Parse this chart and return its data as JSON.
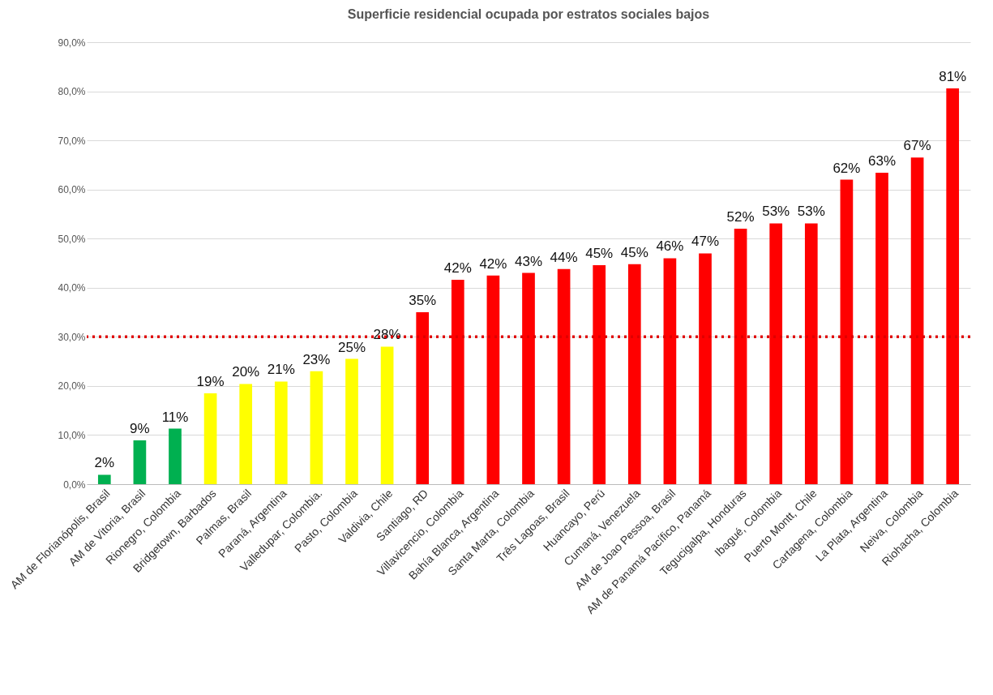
{
  "chart_data": {
    "type": "bar",
    "title": "Superficie residencial ocupada por estratos sociales bajos",
    "categories": [
      "AM de Florianópolis, Brasil",
      "AM de Vitoria, Brasil",
      "Rionegro, Colombia",
      "Bridgetown, Barbados",
      "Palmas, Brasil",
      "Paraná, Argentina",
      "Valledupar, Colombia.",
      "Pasto, Colombia",
      "Valdivia, Chile",
      "Santiago, RD",
      "Villavicencio, Colombia",
      "Bahía Blanca, Argentina",
      "Santa Marta, Colombia",
      "Três Lagoas, Brasil",
      "Huancayo, Perú",
      "Cumaná, Venezuela",
      "AM de Joao Pessoa, Brasil",
      "AM de Panamá Pacífico, Panamá",
      "Tegucigalpa, Honduras",
      "Ibagué, Colombia",
      "Puerto Montt, Chile",
      "Cartagena, Colombia",
      "La Plata, Argentina",
      "Neiva, Colombia",
      "Riohacha, Colombia"
    ],
    "values": [
      1.9,
      8.9,
      11.3,
      18.5,
      20.4,
      20.9,
      23,
      25.5,
      28,
      35,
      41.6,
      42.5,
      43,
      43.8,
      44.6,
      44.8,
      46,
      47,
      52,
      53.1,
      53.1,
      62,
      63.4,
      66.5,
      80.6
    ],
    "value_labels": [
      "2%",
      "9%",
      "11%",
      "19%",
      "20%",
      "21%",
      "23%",
      "25%",
      "28%",
      "35%",
      "42%",
      "42%",
      "43%",
      "44%",
      "45%",
      "45%",
      "46%",
      "47%",
      "52%",
      "53%",
      "53%",
      "62%",
      "63%",
      "67%",
      "81%"
    ],
    "colors": [
      "#00b050",
      "#00b050",
      "#00b050",
      "#ffff00",
      "#ffff00",
      "#ffff00",
      "#ffff00",
      "#ffff00",
      "#ffff00",
      "#ff0000",
      "#ff0000",
      "#ff0000",
      "#ff0000",
      "#ff0000",
      "#ff0000",
      "#ff0000",
      "#ff0000",
      "#ff0000",
      "#ff0000",
      "#ff0000",
      "#ff0000",
      "#ff0000",
      "#ff0000",
      "#ff0000",
      "#ff0000"
    ],
    "ylim": [
      0,
      90
    ],
    "yticks": [
      {
        "value": 0,
        "label": "0,0%"
      },
      {
        "value": 10,
        "label": "10,0%"
      },
      {
        "value": 20,
        "label": "20,0%"
      },
      {
        "value": 30,
        "label": "30,0%"
      },
      {
        "value": 40,
        "label": "40,0%"
      },
      {
        "value": 50,
        "label": "50,0%"
      },
      {
        "value": 60,
        "label": "60,0%"
      },
      {
        "value": 70,
        "label": "70,0%"
      },
      {
        "value": 80,
        "label": "80,0%"
      },
      {
        "value": 90,
        "label": "90,0%"
      }
    ],
    "ref_lines": [
      {
        "axis": "y",
        "value": 30,
        "color": "#e00000",
        "line_style": "dotted"
      }
    ],
    "grid": "y"
  }
}
